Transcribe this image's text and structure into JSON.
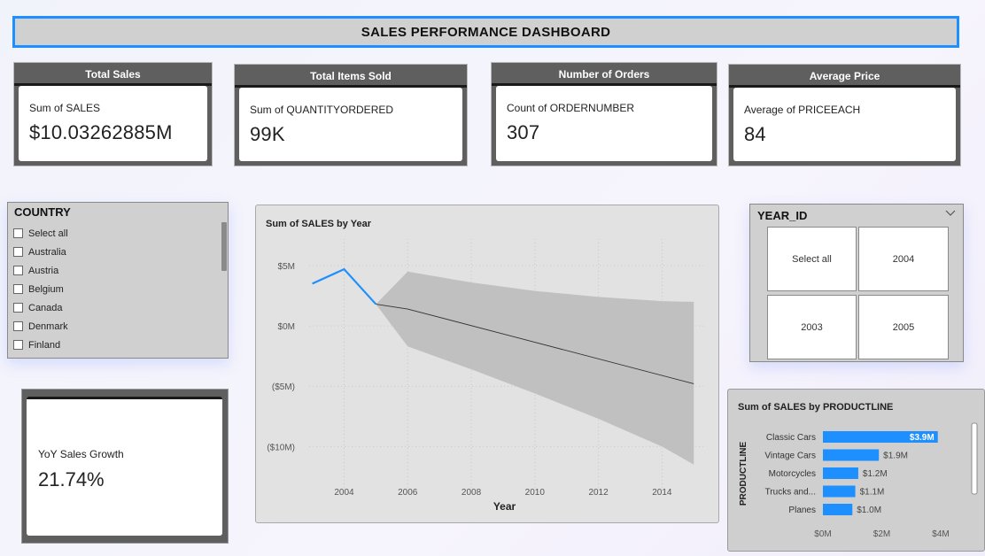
{
  "title": "SALES PERFORMANCE DASHBOARD",
  "kpis": [
    {
      "header": "Total Sales",
      "label": "Sum of SALES",
      "value": "$10.03262885M"
    },
    {
      "header": "Total Items Sold",
      "label": "Sum of QUANTITYORDERED",
      "value": "99K"
    },
    {
      "header": "Number of Orders",
      "label": "Count of ORDERNUMBER",
      "value": "307"
    },
    {
      "header": "Average Price",
      "label": "Average of PRICEEACH",
      "value": "84"
    }
  ],
  "country_slicer": {
    "title": "COUNTRY",
    "items": [
      "Select all",
      "Australia",
      "Austria",
      "Belgium",
      "Canada",
      "Denmark",
      "Finland"
    ]
  },
  "yoy": {
    "label": "YoY Sales Growth",
    "value": "21.74%"
  },
  "year_slicer": {
    "title": "YEAR_ID",
    "tiles": [
      "Select all",
      "2004",
      "2003",
      "2005"
    ]
  },
  "chart_data": [
    {
      "type": "line",
      "title": "Sum of SALES by Year",
      "xlabel": "Year",
      "ylabel": "",
      "x_ticks": [
        2004,
        2006,
        2008,
        2010,
        2012,
        2014
      ],
      "y_ticks": [
        {
          "value": 5,
          "label": "$5M"
        },
        {
          "value": 0,
          "label": "$0M"
        },
        {
          "value": -5,
          "label": "($5M)"
        },
        {
          "value": -10,
          "label": "($10M)"
        }
      ],
      "xlim": [
        2002.9,
        2015.3
      ],
      "ylim": [
        -13.5,
        7.2
      ],
      "series": [
        {
          "values": [
            [
              2003,
              3.5
            ],
            [
              2004,
              4.7
            ],
            [
              2005,
              1.8
            ]
          ],
          "color": "#1e8fff"
        }
      ],
      "forecast": {
        "line": [
          [
            2005,
            1.8
          ],
          [
            2006,
            1.4
          ],
          [
            2015,
            -4.8
          ]
        ],
        "upper": [
          [
            2005,
            1.8
          ],
          [
            2006,
            4.5
          ],
          [
            2008,
            3.6
          ],
          [
            2010,
            2.9
          ],
          [
            2012,
            2.4
          ],
          [
            2014,
            2.05
          ],
          [
            2015,
            2.0
          ]
        ],
        "lower": [
          [
            2005,
            1.8
          ],
          [
            2006,
            -1.7
          ],
          [
            2008,
            -3.6
          ],
          [
            2010,
            -5.6
          ],
          [
            2012,
            -7.7
          ],
          [
            2014,
            -10.0
          ],
          [
            2015,
            -11.5
          ]
        ],
        "band_color": "#bdbdbd"
      },
      "grid": true
    },
    {
      "type": "bar",
      "orientation": "horizontal",
      "title": "Sum of SALES by PRODUCTLINE",
      "ylabel": "PRODUCTLINE",
      "categories": [
        "Classic Cars",
        "Vintage Cars",
        "Motorcycles",
        "Trucks and...",
        "Planes"
      ],
      "values": [
        3.9,
        1.9,
        1.2,
        1.1,
        1.0
      ],
      "data_labels": [
        "$3.9M",
        "$1.9M",
        "$1.2M",
        "$1.1M",
        "$1.0M"
      ],
      "x_ticks": [
        {
          "value": 0,
          "label": "$0M"
        },
        {
          "value": 2,
          "label": "$2M"
        },
        {
          "value": 4,
          "label": "$4M"
        }
      ],
      "xlim": [
        0,
        4.3
      ],
      "color": "#1e8fff"
    }
  ]
}
